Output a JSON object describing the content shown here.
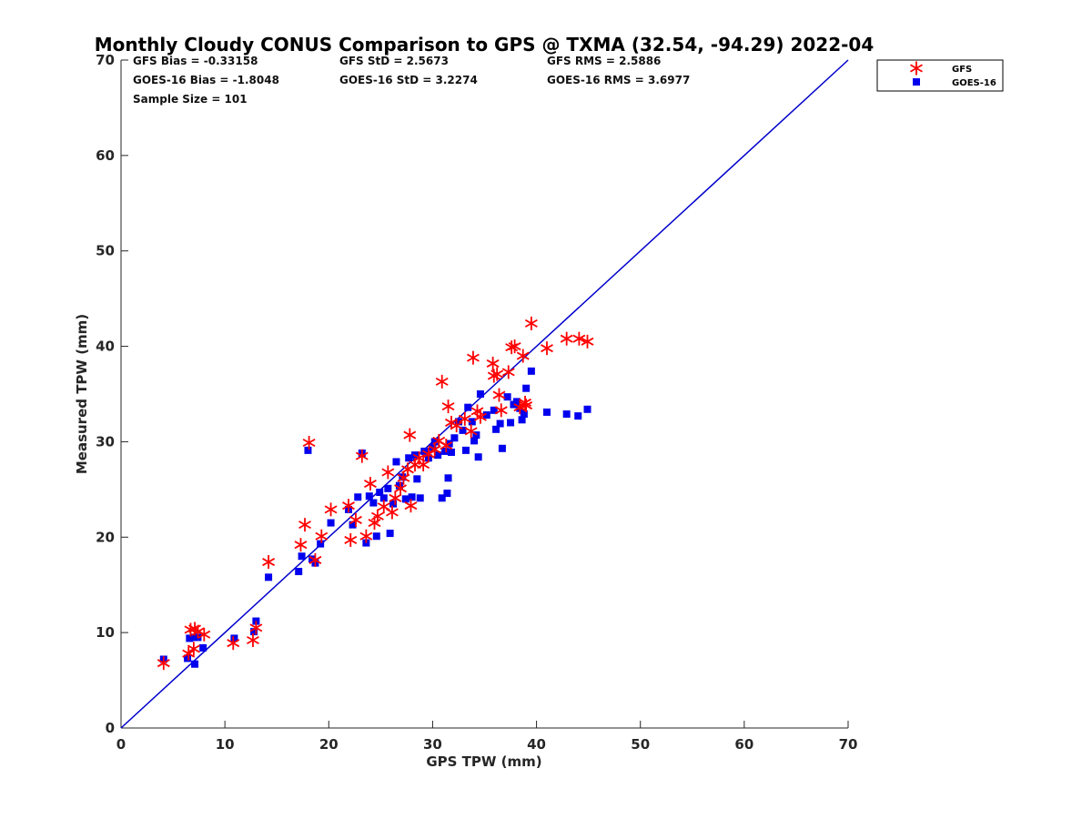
{
  "chart_data": {
    "type": "scatter",
    "title": "Monthly Cloudy CONUS Comparison to GPS @ TXMA (32.54, -94.29) 2022-04",
    "xlabel": "GPS TPW (mm)",
    "ylabel": "Measured TPW (mm)",
    "xlim": [
      0,
      70
    ],
    "ylim": [
      0,
      70
    ],
    "xticks": [
      "0",
      "10",
      "20",
      "30",
      "40",
      "50",
      "60",
      "70"
    ],
    "yticks": [
      "0",
      "10",
      "20",
      "30",
      "40",
      "50",
      "60",
      "70"
    ],
    "legend_position": "top-right outside",
    "stats": {
      "gfs_bias": "GFS Bias = -0.33158",
      "gfs_std": "GFS StD = 2.5673",
      "gfs_rms": "GFS RMS = 2.5886",
      "goes_bias": "GOES-16 Bias = -1.8048",
      "goes_std": "GOES-16 StD = 3.2274",
      "goes_rms": "GOES-16 RMS = 3.6977",
      "sample_size": "Sample Size = 101"
    },
    "one_to_one_line": {
      "from": [
        0,
        0
      ],
      "to": [
        70,
        70
      ],
      "color": "#0000cc"
    },
    "series": [
      {
        "name": "GFS",
        "marker": "asterisk",
        "color": "#ff0000",
        "points": [
          [
            4.1,
            6.8
          ],
          [
            6.5,
            7.8
          ],
          [
            6.7,
            10.3
          ],
          [
            7.1,
            10.4
          ],
          [
            7.4,
            10.1
          ],
          [
            7.0,
            8.3
          ],
          [
            8.0,
            9.8
          ],
          [
            10.8,
            8.9
          ],
          [
            12.7,
            9.2
          ],
          [
            13.0,
            10.5
          ],
          [
            14.2,
            17.4
          ],
          [
            17.3,
            19.2
          ],
          [
            17.7,
            21.3
          ],
          [
            18.1,
            29.9
          ],
          [
            18.7,
            17.6
          ],
          [
            19.3,
            20.1
          ],
          [
            20.2,
            22.9
          ],
          [
            21.9,
            23.3
          ],
          [
            22.1,
            19.7
          ],
          [
            22.6,
            21.8
          ],
          [
            23.2,
            28.5
          ],
          [
            23.6,
            20.1
          ],
          [
            24.0,
            25.6
          ],
          [
            24.4,
            21.5
          ],
          [
            24.7,
            22.2
          ],
          [
            25.3,
            23.2
          ],
          [
            25.7,
            26.8
          ],
          [
            26.1,
            22.6
          ],
          [
            26.4,
            24.1
          ],
          [
            26.9,
            25.1
          ],
          [
            27.2,
            26.2
          ],
          [
            27.6,
            27.1
          ],
          [
            27.9,
            23.3
          ],
          [
            27.8,
            30.7
          ],
          [
            28.3,
            27.6
          ],
          [
            28.7,
            28.3
          ],
          [
            29.1,
            27.6
          ],
          [
            29.6,
            28.7
          ],
          [
            30.2,
            29.2
          ],
          [
            30.6,
            30.1
          ],
          [
            30.9,
            36.3
          ],
          [
            31.3,
            29.6
          ],
          [
            31.5,
            33.7
          ],
          [
            31.8,
            32.0
          ],
          [
            32.3,
            31.7
          ],
          [
            33.1,
            32.4
          ],
          [
            33.7,
            31.1
          ],
          [
            33.9,
            38.8
          ],
          [
            34.3,
            33.2
          ],
          [
            34.6,
            32.6
          ],
          [
            35.8,
            38.2
          ],
          [
            35.9,
            36.9
          ],
          [
            36.2,
            37.1
          ],
          [
            36.4,
            34.9
          ],
          [
            36.6,
            33.3
          ],
          [
            37.3,
            37.3
          ],
          [
            37.6,
            39.9
          ],
          [
            37.9,
            40.0
          ],
          [
            38.4,
            33.6
          ],
          [
            38.7,
            39.0
          ],
          [
            38.9,
            34.1
          ],
          [
            39.0,
            33.8
          ],
          [
            39.5,
            42.4
          ],
          [
            41.0,
            39.8
          ],
          [
            42.9,
            40.8
          ],
          [
            44.1,
            40.8
          ],
          [
            44.9,
            40.5
          ]
        ]
      },
      {
        "name": "GOES-16",
        "marker": "square",
        "color": "#0000ee",
        "points": [
          [
            4.1,
            7.2
          ],
          [
            6.4,
            7.3
          ],
          [
            6.6,
            9.4
          ],
          [
            7.0,
            9.5
          ],
          [
            7.1,
            6.7
          ],
          [
            7.4,
            9.5
          ],
          [
            7.9,
            8.4
          ],
          [
            10.9,
            9.4
          ],
          [
            12.8,
            10.1
          ],
          [
            13.0,
            11.2
          ],
          [
            14.2,
            15.8
          ],
          [
            17.1,
            16.4
          ],
          [
            17.4,
            18.0
          ],
          [
            18.0,
            29.1
          ],
          [
            18.4,
            17.7
          ],
          [
            18.7,
            17.3
          ],
          [
            19.2,
            19.3
          ],
          [
            20.2,
            21.5
          ],
          [
            21.9,
            22.9
          ],
          [
            22.3,
            21.3
          ],
          [
            22.8,
            24.2
          ],
          [
            23.2,
            28.8
          ],
          [
            23.6,
            19.4
          ],
          [
            23.9,
            24.3
          ],
          [
            24.3,
            23.6
          ],
          [
            24.6,
            20.1
          ],
          [
            24.9,
            24.7
          ],
          [
            25.3,
            24.1
          ],
          [
            25.7,
            25.1
          ],
          [
            25.9,
            20.4
          ],
          [
            26.2,
            23.5
          ],
          [
            26.5,
            27.9
          ],
          [
            26.8,
            25.4
          ],
          [
            27.1,
            26.3
          ],
          [
            27.4,
            24.0
          ],
          [
            27.7,
            28.3
          ],
          [
            28.0,
            24.2
          ],
          [
            28.3,
            28.6
          ],
          [
            28.5,
            26.1
          ],
          [
            28.8,
            24.1
          ],
          [
            29.2,
            29.0
          ],
          [
            29.6,
            28.3
          ],
          [
            30.0,
            29.4
          ],
          [
            30.2,
            30.0
          ],
          [
            30.5,
            28.6
          ],
          [
            30.9,
            24.1
          ],
          [
            31.2,
            29.0
          ],
          [
            31.4,
            24.6
          ],
          [
            31.5,
            26.2
          ],
          [
            31.6,
            29.8
          ],
          [
            31.8,
            28.9
          ],
          [
            32.1,
            30.4
          ],
          [
            32.5,
            32.1
          ],
          [
            32.9,
            31.2
          ],
          [
            33.2,
            29.1
          ],
          [
            33.4,
            33.6
          ],
          [
            33.8,
            32.1
          ],
          [
            34.0,
            30.1
          ],
          [
            34.2,
            30.7
          ],
          [
            34.4,
            28.4
          ],
          [
            34.6,
            35.0
          ],
          [
            35.2,
            32.8
          ],
          [
            35.9,
            33.3
          ],
          [
            36.1,
            31.3
          ],
          [
            36.5,
            31.9
          ],
          [
            36.7,
            29.3
          ],
          [
            37.2,
            34.7
          ],
          [
            37.5,
            32.0
          ],
          [
            37.8,
            33.9
          ],
          [
            38.1,
            34.2
          ],
          [
            38.4,
            33.5
          ],
          [
            38.6,
            32.3
          ],
          [
            38.8,
            32.9
          ],
          [
            39.0,
            35.6
          ],
          [
            39.5,
            37.4
          ],
          [
            41.0,
            33.1
          ],
          [
            42.9,
            32.9
          ],
          [
            44.0,
            32.7
          ],
          [
            44.9,
            33.4
          ]
        ]
      }
    ]
  }
}
